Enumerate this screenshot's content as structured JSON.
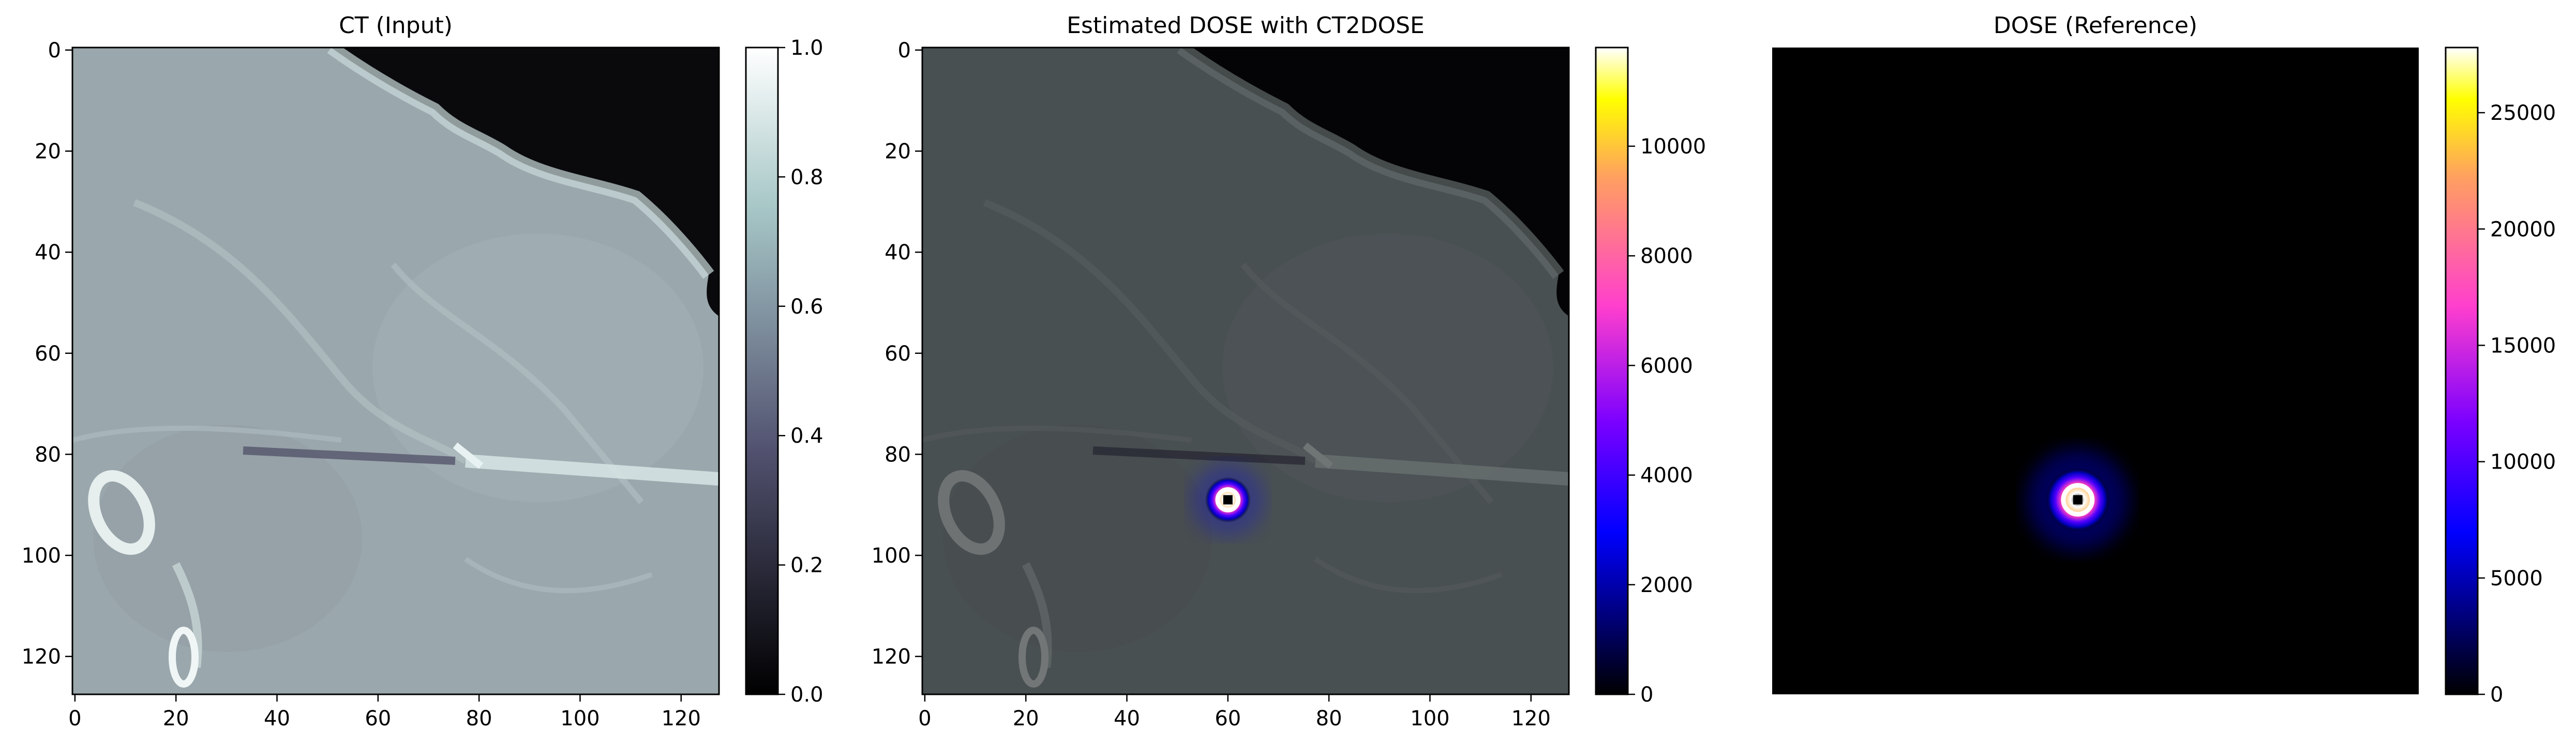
{
  "chart_data": [
    {
      "type": "heatmap",
      "title": "CT (Input)",
      "image": "grayscale CT slice (bone colormap)",
      "xlim": [
        0,
        127
      ],
      "ylim": [
        127,
        0
      ],
      "x_ticks": [
        0,
        20,
        40,
        60,
        80,
        100,
        120
      ],
      "y_ticks": [
        0,
        20,
        40,
        60,
        80,
        100,
        120
      ],
      "colormap": "bone",
      "colorbar": {
        "range": [
          0.0,
          1.0
        ],
        "ticks": [
          "0.0",
          "0.2",
          "0.4",
          "0.6",
          "0.8",
          "1.0"
        ]
      }
    },
    {
      "type": "heatmap",
      "title": "Estimated DOSE with CT2DOSE",
      "image": "CT slice overlaid with estimated dose (gnuplot2 colormap)",
      "xlim": [
        0,
        127
      ],
      "ylim": [
        127,
        0
      ],
      "x_ticks": [
        0,
        20,
        40,
        60,
        80,
        100,
        120
      ],
      "y_ticks": [
        0,
        20,
        40,
        60,
        80,
        100,
        120
      ],
      "hotspot": {
        "x": 60,
        "y": 89
      },
      "colormap": "gnuplot2",
      "colorbar": {
        "range": [
          0,
          11800
        ],
        "ticks": [
          "0",
          "2000",
          "4000",
          "6000",
          "8000",
          "10000"
        ]
      }
    },
    {
      "type": "heatmap",
      "title": "DOSE (Reference)",
      "image": "reference dose map (gnuplot2 colormap)",
      "xlim": [
        0,
        127
      ],
      "ylim": [
        127,
        0
      ],
      "hotspot": {
        "x": 60,
        "y": 89
      },
      "colormap": "gnuplot2",
      "colorbar": {
        "range": [
          0,
          27800
        ],
        "ticks": [
          "0",
          "5000",
          "10000",
          "15000",
          "20000",
          "25000"
        ]
      }
    }
  ]
}
